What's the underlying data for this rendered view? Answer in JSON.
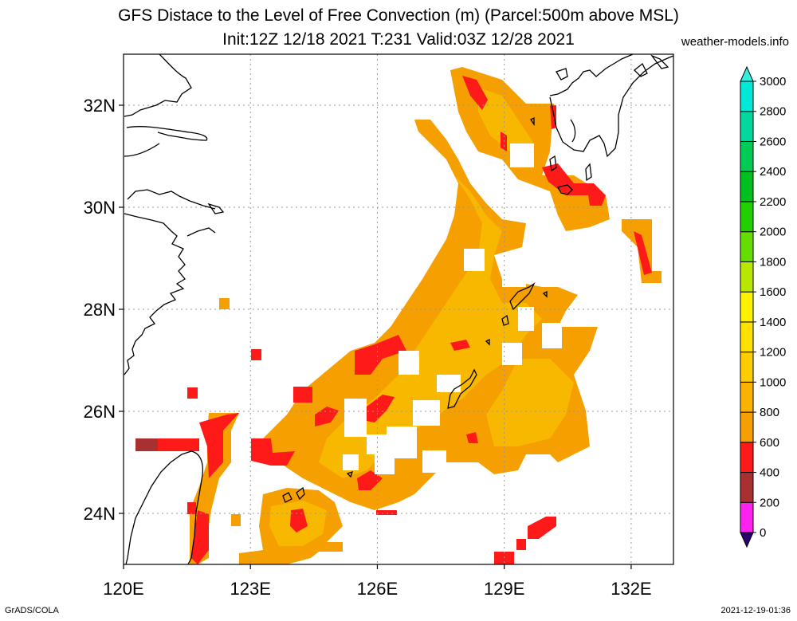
{
  "title": {
    "line1": "GFS Distace to the Level of Free Convection (m) (Parcel:500m above MSL)",
    "line2": "Init:12Z 12/18 2021 T:231 Valid:03Z 12/28 2021"
  },
  "site": "weather-models.info",
  "credit": "GrADS/COLA",
  "timestamp": "2021-12-19-01:36",
  "map": {
    "lon_range": [
      120,
      133
    ],
    "lat_range": [
      23,
      33
    ],
    "lon_ticks": [
      {
        "value": 120,
        "label": "120E"
      },
      {
        "value": 123,
        "label": "123E"
      },
      {
        "value": 126,
        "label": "126E"
      },
      {
        "value": 129,
        "label": "129E"
      },
      {
        "value": 132,
        "label": "132E"
      }
    ],
    "lat_ticks": [
      {
        "value": 24,
        "label": "24N"
      },
      {
        "value": 26,
        "label": "26N"
      },
      {
        "value": 28,
        "label": "28N"
      },
      {
        "value": 30,
        "label": "30N"
      },
      {
        "value": 32,
        "label": "32N"
      }
    ]
  },
  "colorbar": {
    "levels": [
      {
        "label": "0",
        "color": "#3d0a8a"
      },
      {
        "label": "200",
        "color": "#ff22ee"
      },
      {
        "label": "400",
        "color": "#a83030"
      },
      {
        "label": "600",
        "color": "#ff1a1a"
      },
      {
        "label": "800",
        "color": "#f5a000"
      },
      {
        "label": "1000",
        "color": "#fbb300"
      },
      {
        "label": "1200",
        "color": "#ffcc00"
      },
      {
        "label": "1400",
        "color": "#ffe100"
      },
      {
        "label": "1600",
        "color": "#fff200"
      },
      {
        "label": "1800",
        "color": "#b8e800"
      },
      {
        "label": "2000",
        "color": "#66dd00"
      },
      {
        "label": "2200",
        "color": "#22d000"
      },
      {
        "label": "2400",
        "color": "#00c020"
      },
      {
        "label": "2600",
        "color": "#00cc55"
      },
      {
        "label": "2800",
        "color": "#00d8a0"
      },
      {
        "label": "3000",
        "color": "#00e8d8"
      }
    ],
    "top_arrow_color": "#33eedd",
    "bottom_arrow_color": "#2a0070"
  },
  "field": {
    "color_high": "#f8b800",
    "color_mid": "#f5a000",
    "color_low": "#ff1a1a",
    "color_lowest": "#a83030"
  }
}
